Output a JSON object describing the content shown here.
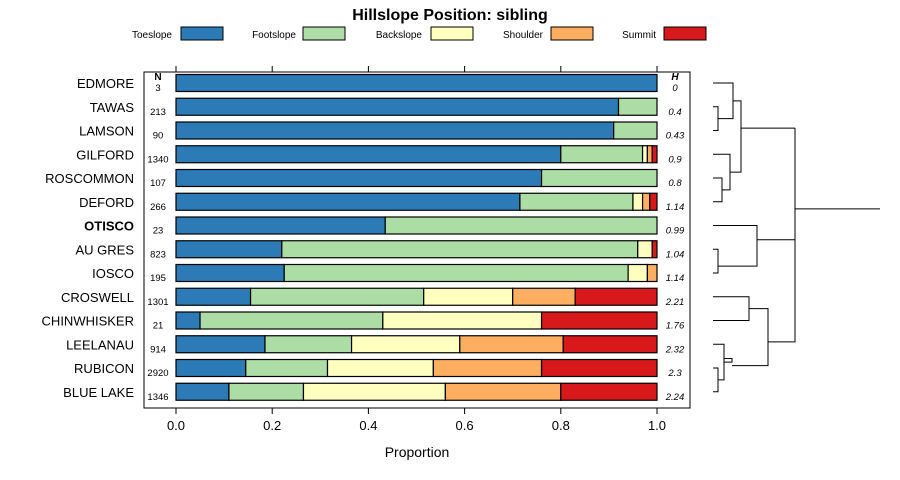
{
  "chart_data": {
    "type": "stacked-bar",
    "orientation": "horizontal",
    "title": "Hillslope Position: sibling",
    "xlabel": "Proportion",
    "xlim": [
      0,
      1
    ],
    "xticks": [
      "0.0",
      "0.2",
      "0.4",
      "0.6",
      "0.8",
      "1.0"
    ],
    "n_header": "N",
    "h_header": "H",
    "legend": [
      {
        "name": "Toeslope",
        "color": "#2c7bb6"
      },
      {
        "name": "Footslope",
        "color": "#abdda4"
      },
      {
        "name": "Backslope",
        "color": "#ffffbf"
      },
      {
        "name": "Shoulder",
        "color": "#fdae61"
      },
      {
        "name": "Summit",
        "color": "#d7191c"
      }
    ],
    "rows": [
      {
        "label": "EDMORE",
        "n": "3",
        "h": "0",
        "values": [
          1.0,
          0,
          0,
          0,
          0
        ]
      },
      {
        "label": "TAWAS",
        "n": "213",
        "h": "0.4",
        "values": [
          0.92,
          0.08,
          0,
          0,
          0
        ]
      },
      {
        "label": "LAMSON",
        "n": "90",
        "h": "0.43",
        "values": [
          0.91,
          0.09,
          0,
          0,
          0
        ]
      },
      {
        "label": "GILFORD",
        "n": "1340",
        "h": "0.9",
        "values": [
          0.8,
          0.17,
          0.01,
          0.01,
          0.01
        ]
      },
      {
        "label": "ROSCOMMON",
        "n": "107",
        "h": "0.8",
        "values": [
          0.76,
          0.24,
          0,
          0,
          0
        ]
      },
      {
        "label": "DEFORD",
        "n": "266",
        "h": "1.14",
        "values": [
          0.715,
          0.235,
          0.02,
          0.015,
          0.015
        ]
      },
      {
        "label": "OTISCO",
        "n": "23",
        "h": "0.99",
        "values": [
          0.435,
          0.565,
          0,
          0,
          0
        ],
        "bold": true
      },
      {
        "label": "AU GRES",
        "n": "823",
        "h": "1.04",
        "values": [
          0.22,
          0.74,
          0.03,
          0,
          0.01
        ]
      },
      {
        "label": "IOSCO",
        "n": "195",
        "h": "1.14",
        "values": [
          0.225,
          0.715,
          0.04,
          0.02,
          0
        ]
      },
      {
        "label": "CROSWELL",
        "n": "1301",
        "h": "2.21",
        "values": [
          0.155,
          0.36,
          0.185,
          0.13,
          0.17
        ]
      },
      {
        "label": "CHINWHISKER",
        "n": "21",
        "h": "1.76",
        "values": [
          0.05,
          0.38,
          0.33,
          0,
          0.24
        ]
      },
      {
        "label": "LEELANAU",
        "n": "914",
        "h": "2.32",
        "values": [
          0.185,
          0.18,
          0.225,
          0.215,
          0.195
        ]
      },
      {
        "label": "RUBICON",
        "n": "2920",
        "h": "2.3",
        "values": [
          0.145,
          0.17,
          0.22,
          0.225,
          0.24
        ]
      },
      {
        "label": "BLUE LAKE",
        "n": "1346",
        "h": "2.24",
        "values": [
          0.11,
          0.155,
          0.295,
          0.24,
          0.2
        ]
      }
    ],
    "dendrogram": "hierarchical clustering of rows (two main clusters)"
  }
}
